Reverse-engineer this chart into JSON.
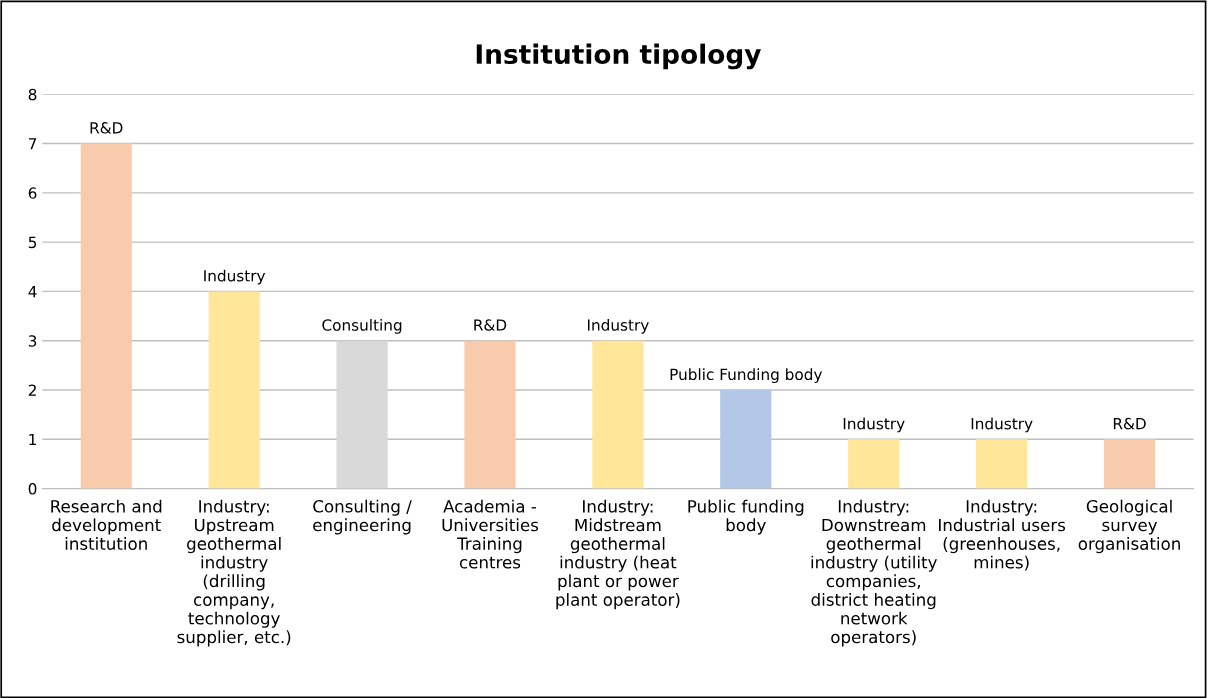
{
  "chart_data": {
    "type": "bar",
    "title": "Institution tipology",
    "categories": [
      "Research and\ndevelopment\ninstitution",
      "Industry:\nUpstream\ngeothermal\nindustry\n(drilling\ncompany,\ntechnology\nsupplier, etc.)",
      "Consulting /\nengineering",
      "Academia -\nUniversities\nTraining\ncentres",
      "Industry:\nMidstream\ngeothermal\nindustry (heat\nplant or power\nplant operator)",
      "Public funding\nbody",
      "Industry:\nDownstream\ngeothermal\nindustry (utility\ncompanies,\ndistrict heating\nnetwork\noperators)",
      "Industry:\nIndustrial users\n(greenhouses,\nmines)",
      "Geological\nsurvey\norganisation"
    ],
    "values": [
      7,
      4,
      3,
      3,
      3,
      2,
      1,
      1,
      1
    ],
    "colors": [
      "#f8cbad",
      "#ffe699",
      "#d9d9d9",
      "#f8cbad",
      "#ffe699",
      "#b4c7e7",
      "#ffe699",
      "#ffe699",
      "#f8cbad"
    ],
    "value_labels": [
      "R&D",
      "Industry",
      "Consulting",
      "R&D",
      "Industry",
      "Public Funding body",
      "Industry",
      "Industry",
      "R&D"
    ],
    "ylim": [
      0,
      8
    ],
    "yticks": [
      0,
      1,
      2,
      3,
      4,
      5,
      6,
      7,
      8
    ],
    "grid": "y"
  }
}
